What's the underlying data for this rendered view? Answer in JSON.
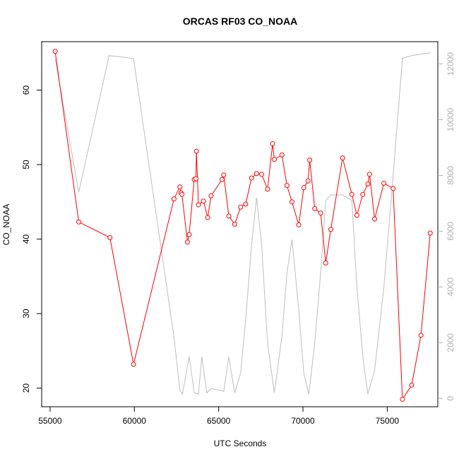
{
  "chart_data": {
    "type": "line",
    "title": "ORCAS RF03 CO_NOAA",
    "xlabel": "UTC Seconds",
    "ylabel": "CO_NOAA",
    "xlim": [
      54500,
      78000
    ],
    "ylim": [
      17.5,
      66.5
    ],
    "y2lim": [
      -300,
      12800
    ],
    "x_ticks": [
      55000,
      60000,
      65000,
      70000,
      75000
    ],
    "y_ticks": [
      20,
      30,
      40,
      50,
      60
    ],
    "y2_ticks": [
      0,
      2000,
      4000,
      6000,
      8000,
      10000,
      12000
    ],
    "grid": false,
    "colors": {
      "co": "#ff0000",
      "altitude": "#bebebe",
      "right_axis": "#b0b0b0"
    },
    "series": [
      {
        "axis": "left",
        "style": "line+points",
        "x": [
          55300,
          56700,
          58550,
          59950,
          62350,
          62700,
          62770,
          62820,
          63150,
          63250,
          63550,
          63650,
          63680,
          63800,
          64100,
          64350,
          64550,
          65200,
          65300,
          65600,
          65950,
          66300,
          66600,
          66950,
          67250,
          67550,
          67900,
          68200,
          68300,
          68750,
          69050,
          69350,
          69750,
          70050,
          70300,
          70400,
          70700,
          71050,
          71350,
          71650,
          72350,
          72900,
          73200,
          73550,
          73850,
          73950,
          74250,
          74800,
          75350,
          75900,
          76450,
          77000,
          77550
        ],
        "values": [
          65.2,
          42.3,
          40.2,
          23.2,
          45.4,
          47.0,
          46.2,
          46.0,
          39.6,
          40.6,
          48.0,
          48.1,
          51.8,
          44.6,
          45.1,
          42.9,
          45.8,
          48.0,
          48.6,
          43.1,
          42.0,
          44.3,
          44.7,
          48.2,
          48.8,
          48.7,
          46.7,
          52.8,
          50.7,
          51.3,
          47.2,
          45.0,
          41.9,
          46.9,
          47.8,
          50.6,
          44.1,
          43.5,
          36.8,
          41.3,
          50.9,
          46.0,
          43.2,
          46.0,
          47.4,
          48.7,
          42.7,
          47.5,
          46.8,
          18.5,
          20.4,
          27.1,
          40.8
        ]
      },
      {
        "axis": "right",
        "style": "line",
        "x": [
          55300,
          56700,
          58500,
          59950,
          62350,
          62700,
          62850,
          63250,
          63550,
          63800,
          64000,
          64300,
          64550,
          65000,
          65300,
          65600,
          65950,
          66300,
          66600,
          66950,
          67250,
          67550,
          67900,
          68300,
          68750,
          69050,
          69350,
          69750,
          70050,
          70350,
          70700,
          71050,
          71350,
          71650,
          72350,
          72900,
          73200,
          73550,
          73850,
          74250,
          74800,
          75350,
          75900,
          76450,
          77550
        ],
        "values": [
          12200,
          7400,
          12300,
          12200,
          2200,
          300,
          150,
          1500,
          200,
          150,
          1500,
          200,
          350,
          300,
          250,
          1500,
          200,
          900,
          2800,
          5500,
          7200,
          5500,
          2000,
          200,
          2200,
          4500,
          5700,
          3200,
          900,
          150,
          2000,
          4500,
          7100,
          7300,
          7300,
          7100,
          4000,
          1500,
          150,
          1000,
          4000,
          8000,
          12200,
          12300,
          12400
        ]
      }
    ]
  }
}
